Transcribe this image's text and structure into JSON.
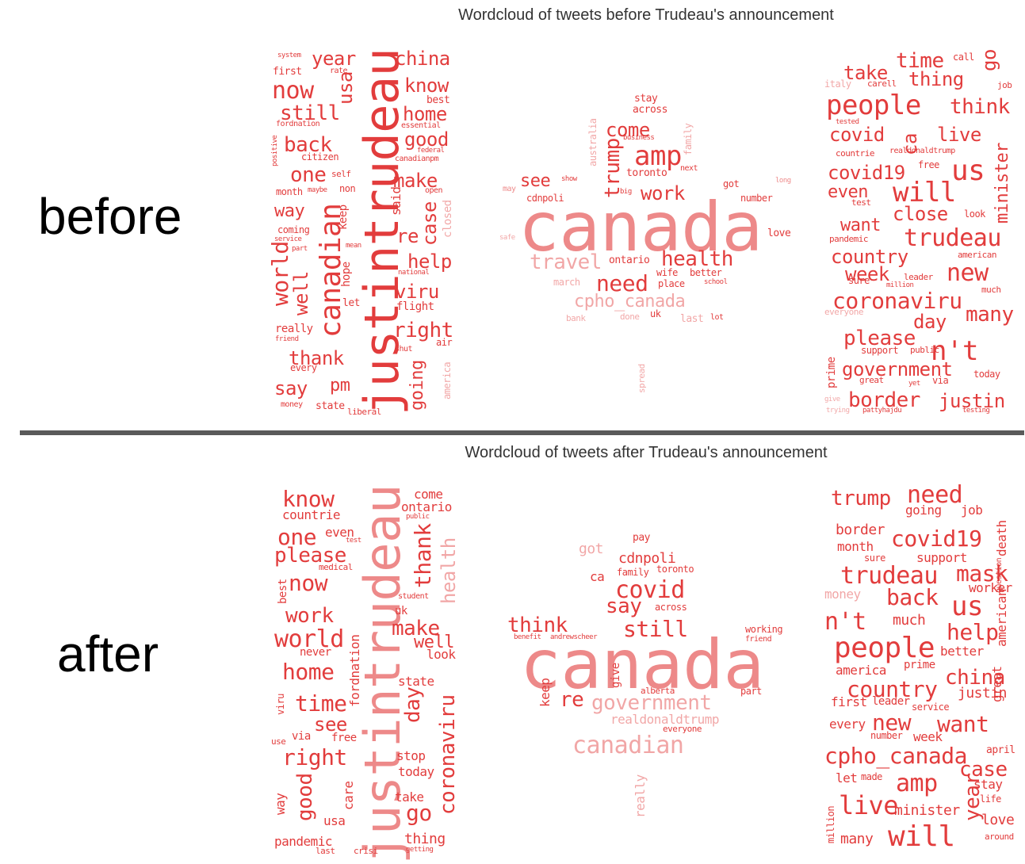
{
  "colors": {
    "word": "#e23c3c",
    "title": "#333333",
    "divider": "#5a5a5a"
  },
  "before": {
    "label": "before",
    "title": "Wordcloud of tweets before Trudeau's announcement",
    "words": [
      "system",
      "year",
      "china",
      "first",
      "rate",
      "know",
      "now",
      "usa",
      "best",
      "still",
      "home",
      "fordnation",
      "essential",
      "good",
      "back",
      "federal",
      "citizen",
      "canadianpm",
      "positive",
      "one",
      "self",
      "make",
      "month",
      "maybe",
      "non",
      "open",
      "way",
      "said",
      "case",
      "re",
      "coming",
      "service",
      "keep",
      "canadian",
      "help",
      "part",
      "mean",
      "world",
      "hope",
      "national",
      "viru",
      "well",
      "let",
      "flight",
      "really",
      "friend",
      "right",
      "justintrudeau",
      "thank",
      "air",
      "every",
      "shut",
      "say",
      "pm",
      "going",
      "money",
      "state",
      "liberal",
      "america",
      "closed",
      "stay",
      "across",
      "australia",
      "come",
      "family",
      "business",
      "amp",
      "trump",
      "toronto",
      "next",
      "see",
      "show",
      "work",
      "long",
      "may",
      "cdnpoli",
      "big",
      "number",
      "canada",
      "travel",
      "ontario",
      "health",
      "love",
      "wife",
      "better",
      "need",
      "place",
      "school",
      "cpho_canada",
      "march",
      "bank",
      "done",
      "uk",
      "last",
      "lot",
      "spread",
      "safe",
      "got",
      "take",
      "time",
      "call",
      "go",
      "thing",
      "italy",
      "carell",
      "job",
      "people",
      "think",
      "tested",
      "covid",
      "ca",
      "live",
      "countrie",
      "realdonaldtrump",
      "free",
      "minister",
      "covid19",
      "us",
      "even",
      "will",
      "test",
      "close",
      "look",
      "want",
      "trudeau",
      "pandemic",
      "country",
      "american",
      "week",
      "new",
      "sure",
      "leader",
      "million",
      "coronaviru",
      "much",
      "everyone",
      "day",
      "many",
      "please",
      "support",
      "public",
      "n't",
      "prime",
      "government",
      "today",
      "great",
      "border",
      "justin",
      "pattyhajdu",
      "testing",
      "trying",
      "yet",
      "via",
      "give"
    ]
  },
  "after": {
    "label": "after",
    "title": "Wordcloud of tweets after Trudeau's announcement",
    "words": [
      "know",
      "come",
      "ontario",
      "countrie",
      "public",
      "one",
      "even",
      "test",
      "please",
      "medical",
      "thank",
      "now",
      "best",
      "health",
      "student",
      "work",
      "uk",
      "make",
      "world",
      "well",
      "look",
      "never",
      "home",
      "fordnation",
      "state",
      "time",
      "day",
      "see",
      "viru",
      "via",
      "free",
      "use",
      "right",
      "stop",
      "today",
      "justintrudeau",
      "coronaviru",
      "way",
      "good",
      "take",
      "care",
      "usa",
      "go",
      "pandemic",
      "last",
      "crisi",
      "thing",
      "getting",
      "pay",
      "got",
      "cdnpoli",
      "ca",
      "family",
      "toronto",
      "covid",
      "say",
      "across",
      "think",
      "benefit",
      "andrewscheer",
      "still",
      "working",
      "friend",
      "canada",
      "give",
      "keep",
      "alberta",
      "re",
      "government",
      "part",
      "realdonaldtrump",
      "everyone",
      "canadian",
      "really",
      "trump",
      "need",
      "going",
      "job",
      "border",
      "covid19",
      "month",
      "sure",
      "support",
      "trudeau",
      "mask",
      "death",
      "money",
      "back",
      "worker",
      "n't",
      "much",
      "us",
      "help",
      "question",
      "people",
      "better",
      "american",
      "america",
      "prime",
      "china",
      "country",
      "justin",
      "first",
      "leader",
      "service",
      "every",
      "new",
      "want",
      "great",
      "number",
      "week",
      "cpho_canada",
      "april",
      "case",
      "let",
      "made",
      "amp",
      "stay",
      "live",
      "minister",
      "life",
      "year",
      "love",
      "million",
      "many",
      "will",
      "around"
    ]
  }
}
